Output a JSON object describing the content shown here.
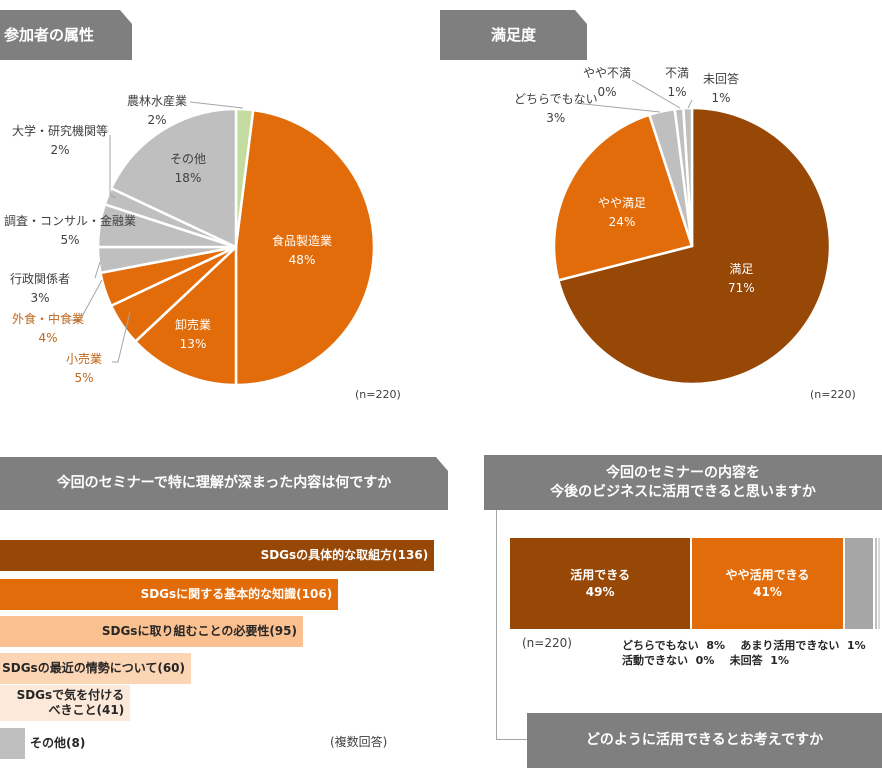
{
  "chart_data": [
    {
      "type": "pie",
      "title": "参加者の属性",
      "note": "(n=220)",
      "slices": [
        {
          "label": "農林水産業",
          "value": 2,
          "color": "#c4dca0"
        },
        {
          "label": "食品製造業",
          "value": 48,
          "color": "#e36c0a"
        },
        {
          "label": "卸売業",
          "value": 13,
          "color": "#e36c0a"
        },
        {
          "label": "小売業",
          "value": 5,
          "color": "#e36c0a"
        },
        {
          "label": "外食・中食業",
          "value": 4,
          "color": "#e36c0a"
        },
        {
          "label": "行政関係者",
          "value": 3,
          "color": "#bfbfbf"
        },
        {
          "label": "調査・コンサル・金融業",
          "value": 5,
          "color": "#bfbfbf"
        },
        {
          "label": "大学・研究機関等",
          "value": 2,
          "color": "#bfbfbf"
        },
        {
          "label": "その他",
          "value": 18,
          "color": "#bfbfbf"
        }
      ]
    },
    {
      "type": "pie",
      "title": "満足度",
      "note": "(n=220)",
      "slices": [
        {
          "label": "満足",
          "value": 71,
          "color": "#974706"
        },
        {
          "label": "やや満足",
          "value": 24,
          "color": "#e36c0a"
        },
        {
          "label": "どちらでもない",
          "value": 3,
          "color": "#bfbfbf"
        },
        {
          "label": "やや不満",
          "value": 0,
          "color": "#bfbfbf"
        },
        {
          "label": "不満",
          "value": 1,
          "color": "#bfbfbf"
        },
        {
          "label": "未回答",
          "value": 1,
          "color": "#bfbfbf"
        }
      ]
    },
    {
      "type": "bar",
      "title": "今回のセミナーで特に理解が深まった内容は何ですか",
      "note": "(複数回答)",
      "categories": [
        "SDGsの具体的な取組方",
        "SDGsに関する基本的な知識",
        "SDGsに取り組むことの必要性",
        "SDGsの最近の情勢について",
        "SDGsで気を付けるべきこと",
        "その他"
      ],
      "values": [
        136,
        106,
        95,
        60,
        41,
        8
      ],
      "labels": [
        "SDGsの具体的な取組方(136)",
        "SDGsに関する基本的な知識(106)",
        "SDGsに取り組むことの必要性(95)",
        "SDGsの最近の情勢について(60)",
        "SDGsで気を付ける\nべきこと(41)",
        "その他(8)"
      ],
      "colors": [
        "#974706",
        "#e36c0a",
        "#fac090",
        "#fcd5b4",
        "#fde9d9",
        "#bfbfbf"
      ]
    },
    {
      "type": "bar",
      "stacked": true,
      "title": "今回のセミナーの内容を\n今後のビジネスに活用できると思いますか",
      "note": "(n=220)",
      "series": [
        {
          "name": "活用できる",
          "value": 49,
          "color": "#974706"
        },
        {
          "name": "やや活用できる",
          "value": 41,
          "color": "#e36c0a"
        },
        {
          "name": "どちらでもない",
          "value": 8,
          "color": "#a6a6a6"
        },
        {
          "name": "あまり活用できない",
          "value": 1,
          "color": "#bfbfbf"
        },
        {
          "name": "活動できない",
          "value": 0,
          "color": "#bfbfbf"
        },
        {
          "name": "未回答",
          "value": 1,
          "color": "#d9d9d9"
        }
      ],
      "legend_lines": [
        "どちらでもない  8%    あまり活用できない  1%",
        "活動できない  0%    未回答  1%"
      ]
    }
  ],
  "next_section": {
    "title": "どのように活用できるとお考えですか"
  }
}
